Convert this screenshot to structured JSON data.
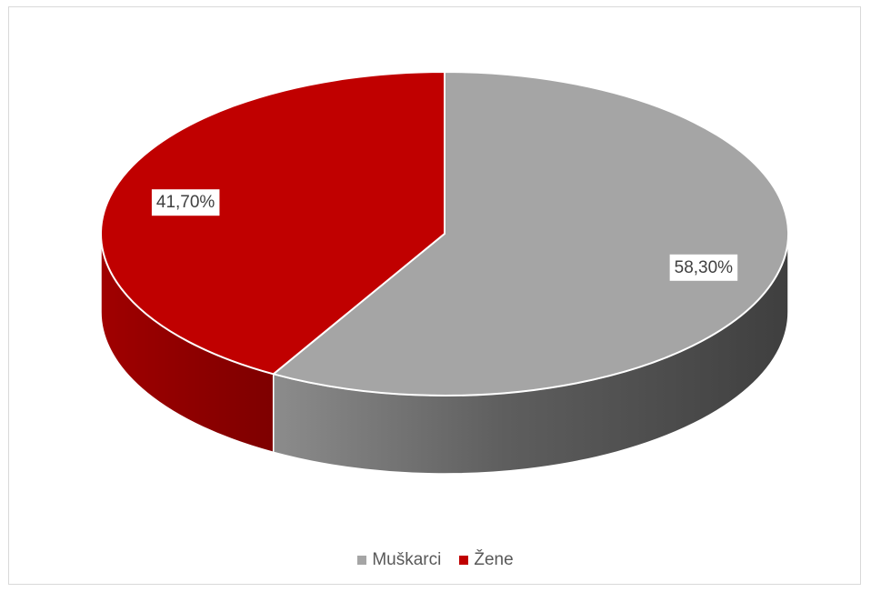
{
  "chart_data": {
    "type": "pie",
    "title": "",
    "categories": [
      "Muškarci",
      "Žene"
    ],
    "values": [
      58.3,
      41.7
    ],
    "labels": [
      "58,30%",
      "41,70%"
    ],
    "colors": [
      "#a5a5a5",
      "#c00000"
    ],
    "legend_position": "bottom",
    "style": "3d"
  }
}
